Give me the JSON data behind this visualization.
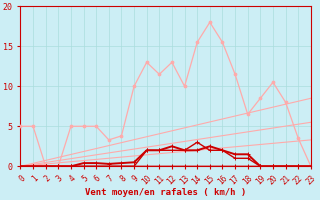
{
  "xlabel": "Vent moyen/en rafales ( km/h )",
  "background_color": "#cceef5",
  "grid_color": "#aadddd",
  "line_color_dark": "#cc0000",
  "line_color_light": "#ffaaaa",
  "xmin": 0,
  "xmax": 23,
  "ymin": 0,
  "ymax": 20,
  "yticks": [
    0,
    5,
    10,
    15,
    20
  ],
  "xticks": [
    0,
    1,
    2,
    3,
    4,
    5,
    6,
    7,
    8,
    9,
    10,
    11,
    12,
    13,
    14,
    15,
    16,
    17,
    18,
    19,
    20,
    21,
    22,
    23
  ],
  "series": [
    {
      "x": [
        0,
        23
      ],
      "y": [
        0,
        8.5
      ],
      "color": "#ffaaaa",
      "linewidth": 0.8,
      "marker": null,
      "zorder": 2
    },
    {
      "x": [
        0,
        23
      ],
      "y": [
        0,
        3.3
      ],
      "color": "#ffaaaa",
      "linewidth": 0.8,
      "marker": null,
      "zorder": 2
    },
    {
      "x": [
        0,
        23
      ],
      "y": [
        0,
        5.5
      ],
      "color": "#ffaaaa",
      "linewidth": 0.8,
      "marker": null,
      "zorder": 2
    },
    {
      "x": [
        0,
        1,
        2,
        3,
        4,
        5,
        6,
        7,
        8,
        9,
        10,
        11,
        12,
        13,
        14,
        15,
        16,
        17,
        18,
        19,
        20,
        21,
        22,
        23
      ],
      "y": [
        5,
        5,
        0,
        0,
        5,
        5,
        5,
        3.3,
        3.8,
        10,
        13,
        11.5,
        13,
        10,
        15.5,
        18,
        15.5,
        11.5,
        6.5,
        8.5,
        10.5,
        8,
        3.5,
        0
      ],
      "color": "#ffaaaa",
      "linewidth": 0.9,
      "marker": "o",
      "markersize": 2,
      "zorder": 3
    },
    {
      "x": [
        0,
        1,
        2,
        3,
        4,
        5,
        6,
        7,
        8,
        9,
        10,
        11,
        12,
        13,
        14,
        15,
        16,
        17,
        18,
        19,
        20,
        21,
        22,
        23
      ],
      "y": [
        0,
        0,
        0,
        0,
        0,
        0,
        0,
        0,
        0,
        0,
        0,
        0,
        0,
        0,
        0,
        0,
        0,
        0,
        0,
        0,
        0,
        0,
        0,
        0
      ],
      "color": "#cc0000",
      "linewidth": 1.0,
      "marker": "+",
      "markersize": 3,
      "zorder": 5
    },
    {
      "x": [
        0,
        1,
        2,
        3,
        4,
        5,
        6,
        7,
        8,
        9,
        10,
        11,
        12,
        13,
        14,
        15,
        16,
        17,
        18,
        19,
        20,
        21,
        22,
        23
      ],
      "y": [
        0,
        0,
        0,
        0,
        0,
        0,
        0,
        0,
        0,
        0,
        2,
        2,
        2,
        2,
        3,
        2,
        2,
        1,
        1,
        0,
        0,
        0,
        0,
        0
      ],
      "color": "#cc0000",
      "linewidth": 1.0,
      "marker": "+",
      "markersize": 3,
      "zorder": 5
    },
    {
      "x": [
        0,
        1,
        2,
        3,
        4,
        5,
        6,
        7,
        8,
        9,
        10,
        11,
        12,
        13,
        14,
        15,
        16,
        17,
        18,
        19,
        20,
        21,
        22,
        23
      ],
      "y": [
        0,
        0,
        0,
        0,
        0,
        0.4,
        0.4,
        0.3,
        0.4,
        0.5,
        2,
        2,
        2.5,
        2,
        2,
        2.5,
        2,
        1.5,
        1.5,
        0,
        0,
        0,
        0,
        0
      ],
      "color": "#cc0000",
      "linewidth": 1.4,
      "marker": "+",
      "markersize": 3,
      "zorder": 4
    }
  ]
}
